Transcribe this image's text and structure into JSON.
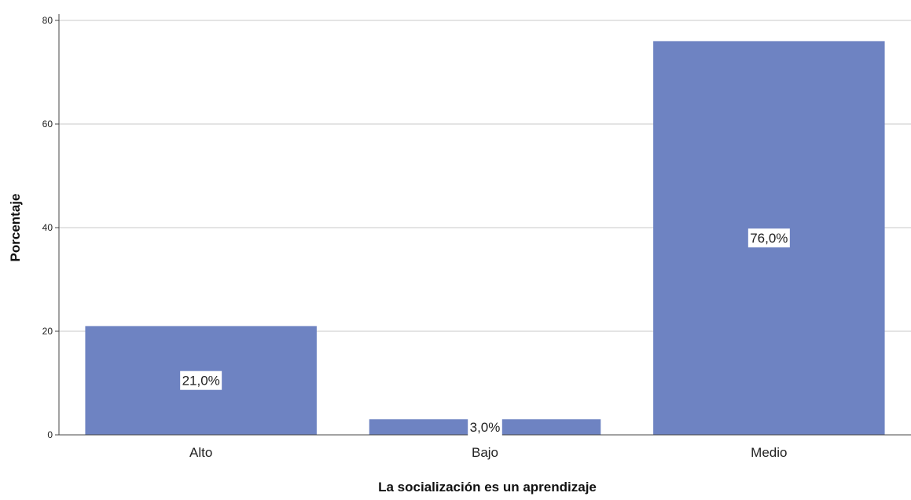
{
  "chart_data": {
    "type": "bar",
    "title": "",
    "xlabel": "La socialización es un aprendizaje",
    "ylabel": "Porcentaje",
    "categories": [
      "Alto",
      "Bajo",
      "Medio"
    ],
    "values": [
      21.0,
      3.0,
      76.0
    ],
    "data_labels": [
      "21,0%",
      "3,0%",
      "76,0%"
    ],
    "ylim": [
      0,
      80
    ],
    "yticks": [
      0,
      20,
      40,
      60,
      80
    ],
    "ytick_labels": [
      "0",
      "20",
      "40",
      "60",
      "80"
    ],
    "grid": true,
    "legend": "none",
    "colors": {
      "bar": "#6e83c2",
      "grid": "#c8c8c8",
      "axis": "#444444",
      "label_background": "#ffffff"
    }
  }
}
